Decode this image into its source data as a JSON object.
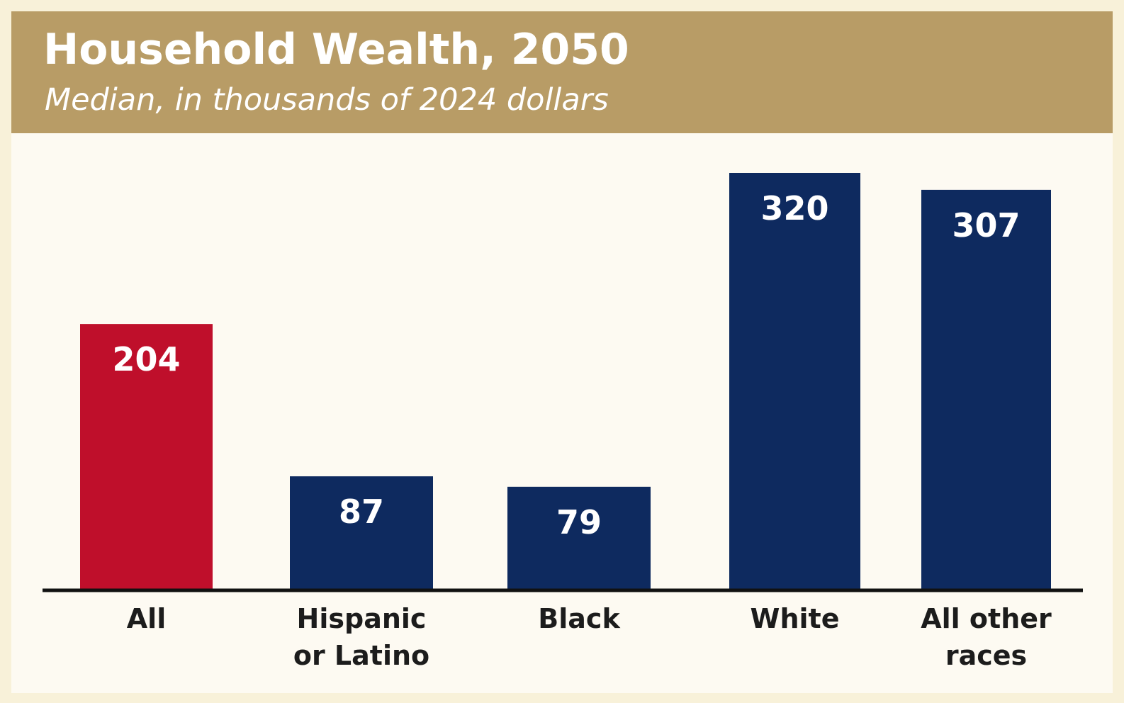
{
  "chart_data": {
    "type": "bar",
    "title": "Household Wealth, 2050",
    "subtitle": "Median, in thousands of 2024 dollars",
    "categories": [
      "All",
      "Hispanic or Latino",
      "Black",
      "White",
      "All other races"
    ],
    "category_lines": [
      [
        "All"
      ],
      [
        "Hispanic",
        "or Latino"
      ],
      [
        "Black"
      ],
      [
        "White"
      ],
      [
        "All other",
        "races"
      ]
    ],
    "values": [
      204,
      87,
      79,
      320,
      307
    ],
    "value_labels": [
      "204",
      "87",
      "79",
      "320",
      "307"
    ],
    "bar_colors": [
      "#bf0f2b",
      "#0e2a5f",
      "#0e2a5f",
      "#0e2a5f",
      "#0e2a5f"
    ],
    "ylim": [
      0,
      320
    ],
    "grid": false,
    "legend": "none"
  },
  "colors": {
    "header_band": "#b89c66",
    "background": "#fdfaf2",
    "border": "#f8f1d9",
    "highlight_bar": "#bf0f2b",
    "bar": "#0e2a5f",
    "baseline": "#111111"
  }
}
